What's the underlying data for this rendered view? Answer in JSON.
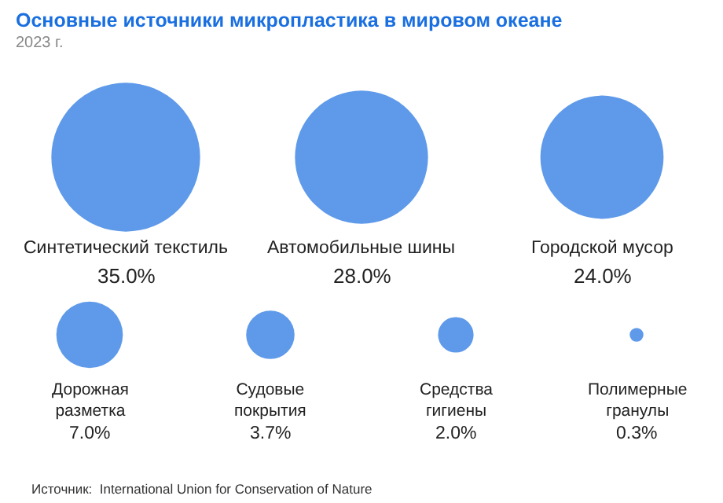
{
  "chart_data": {
    "type": "other",
    "title": "Основные источники микропластика в мировом океане",
    "subtitle": "2023 г.",
    "categories": [
      "Синтетический текстиль",
      "Автомобильные шины",
      "Городской мусор",
      "Дорожная разметка",
      "Судовые покрытия",
      "Средства гигиены",
      "Полимерные гранулы"
    ],
    "values": [
      35.0,
      28.0,
      24.0,
      7.0,
      3.7,
      2.0,
      0.3
    ],
    "value_labels": [
      "35.0%",
      "28.0%",
      "24.0%",
      "7.0%",
      "3.7%",
      "2.0%",
      "0.3%"
    ],
    "color": "#1a6fe0",
    "annotations": [
      "Источник:  International Union for Conservation of Nature"
    ]
  }
}
